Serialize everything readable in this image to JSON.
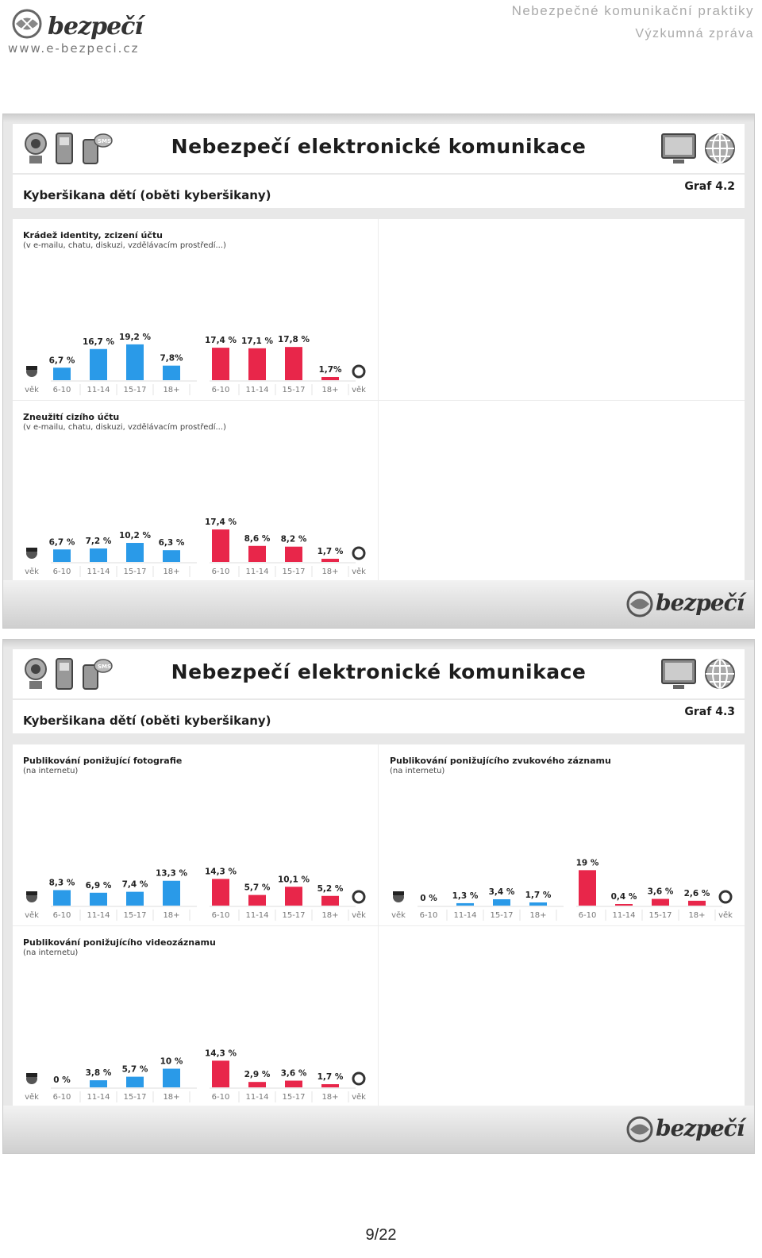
{
  "header": {
    "logo_text": "bezpečí",
    "website": "www.e-bezpeci.cz",
    "doc_title": "Nebezpečné komunikační praktiky",
    "doc_subtitle": "Výzkumná zpráva"
  },
  "slides": [
    {
      "banner_title": "Nebezpečí elektronické komunikace",
      "subtitle": "Kyberšikana dětí (oběti kyberšikany)",
      "graf": "Graf 4.2",
      "footer_logo": "bezpečí"
    },
    {
      "banner_title": "Nebezpečí elektronické komunikace",
      "subtitle": "Kyberšikana dětí (oběti kyberšikany)",
      "graf": "Graf 4.3",
      "footer_logo": "bezpečí"
    }
  ],
  "page_number": "9/22",
  "colors": {
    "boys": "#2a9ae8",
    "girls": "#e8264a",
    "panel_bg": "#e8e8e8"
  },
  "chart_data": [
    {
      "type": "bar",
      "title": "Krádež identity, zcizení účtu",
      "subtitle": "(v e-mailu, chatu, diskuzi, vzdělávacím prostředí...)",
      "categories": [
        "6-10",
        "11-14",
        "15-17",
        "18+"
      ],
      "age_label": "věk",
      "series": [
        {
          "values": [
            6.7,
            16.7,
            19.2,
            7.8
          ],
          "labels": [
            "6,7 %",
            "16,7 %",
            "19,2 %",
            "7,8%"
          ]
        },
        {
          "values": [
            17.4,
            17.1,
            17.8,
            1.7
          ],
          "labels": [
            "17,4 %",
            "17,1 %",
            "17,8 %",
            "1,7%"
          ]
        }
      ]
    },
    {
      "type": "bar",
      "title": "Zneužití cizího účtu",
      "subtitle": "(v e-mailu, chatu, diskuzi, vzdělávacím prostředí...)",
      "categories": [
        "6-10",
        "11-14",
        "15-17",
        "18+"
      ],
      "age_label": "věk",
      "series": [
        {
          "values": [
            6.7,
            7.2,
            10.2,
            6.3
          ],
          "labels": [
            "6,7 %",
            "7,2 %",
            "10,2 %",
            "6,3 %"
          ]
        },
        {
          "values": [
            17.4,
            8.6,
            8.2,
            1.7
          ],
          "labels": [
            "17,4 %",
            "8,6 %",
            "8,2 %",
            "1,7 %"
          ]
        }
      ]
    },
    {
      "type": "bar",
      "title": "Publikování ponižující fotografie",
      "subtitle": "(na internetu)",
      "categories": [
        "6-10",
        "11-14",
        "15-17",
        "18+"
      ],
      "age_label": "věk",
      "series": [
        {
          "values": [
            8.3,
            6.9,
            7.4,
            13.3
          ],
          "labels": [
            "8,3 %",
            "6,9 %",
            "7,4 %",
            "13,3 %"
          ]
        },
        {
          "values": [
            14.3,
            5.7,
            10.1,
            5.2
          ],
          "labels": [
            "14,3 %",
            "5,7 %",
            "10,1 %",
            "5,2 %"
          ]
        }
      ]
    },
    {
      "type": "bar",
      "title": "Publikování ponižujícího zvukového záznamu",
      "subtitle": "(na internetu)",
      "categories": [
        "6-10",
        "11-14",
        "15-17",
        "18+"
      ],
      "age_label": "věk",
      "series": [
        {
          "values": [
            0,
            1.3,
            3.4,
            1.7
          ],
          "labels": [
            "0 %",
            "1,3 %",
            "3,4 %",
            "1,7 %"
          ]
        },
        {
          "values": [
            19,
            0.4,
            3.6,
            2.6
          ],
          "labels": [
            "19 %",
            "0,4 %",
            "3,6 %",
            "2,6 %"
          ]
        }
      ]
    },
    {
      "type": "bar",
      "title": "Publikování ponižujícího videozáznamu",
      "subtitle": "(na internetu)",
      "categories": [
        "6-10",
        "11-14",
        "15-17",
        "18+"
      ],
      "age_label": "věk",
      "series": [
        {
          "values": [
            0,
            3.8,
            5.7,
            10
          ],
          "labels": [
            "0 %",
            "3,8 %",
            "5,7 %",
            "10 %"
          ]
        },
        {
          "values": [
            14.3,
            2.9,
            3.6,
            1.7
          ],
          "labels": [
            "14,3 %",
            "2,9 %",
            "3,6 %",
            "1,7 %"
          ]
        }
      ]
    }
  ]
}
